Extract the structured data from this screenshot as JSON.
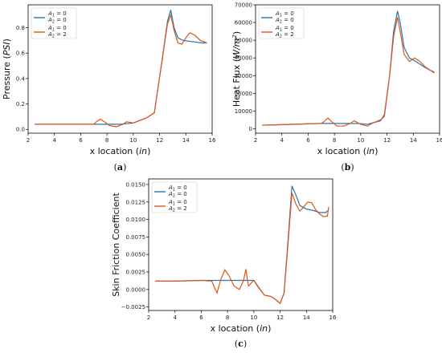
{
  "chart_data": [
    {
      "type": "line",
      "panel_label": "a",
      "xlabel_main": "x location",
      "xlabel_unit": "in",
      "ylabel_main": "Pressure",
      "ylabel_unit": "PSI",
      "ylabel_unit_sup": "",
      "xlim": [
        2,
        16
      ],
      "ylim": [
        -0.03,
        0.98
      ],
      "xticks": [
        2,
        4,
        6,
        8,
        10,
        12,
        14,
        16
      ],
      "yticks": [
        0.0,
        0.2,
        0.4,
        0.6,
        0.8
      ],
      "ytick_labels": [
        "0.0",
        "0.2",
        "0.4",
        "0.6",
        "0.8"
      ],
      "legend_position": "top-left",
      "series": [
        {
          "name_line1": "A1 = 0",
          "name_line2": "A2 = 0",
          "color": "#1f77b4",
          "x": [
            2.5,
            4,
            6,
            7,
            8,
            9,
            10,
            11,
            11.6,
            12.2,
            12.6,
            12.85,
            13.1,
            13.4,
            13.8,
            14.5,
            15.2,
            15.6
          ],
          "y": [
            0.04,
            0.04,
            0.04,
            0.04,
            0.04,
            0.04,
            0.05,
            0.09,
            0.13,
            0.55,
            0.85,
            0.94,
            0.8,
            0.72,
            0.7,
            0.69,
            0.68,
            0.68
          ]
        },
        {
          "name_line1": "A1 = 0",
          "name_line2": "A2 = 2",
          "color": "#e1541b",
          "x": [
            2.5,
            4,
            6,
            7,
            7.2,
            7.5,
            7.8,
            8.2,
            8.7,
            9.2,
            9.5,
            10,
            11,
            11.6,
            12.2,
            12.6,
            12.85,
            13.1,
            13.4,
            13.7,
            14.0,
            14.3,
            14.7,
            15.1,
            15.6
          ],
          "y": [
            0.04,
            0.04,
            0.04,
            0.04,
            0.06,
            0.08,
            0.06,
            0.03,
            0.02,
            0.04,
            0.06,
            0.05,
            0.09,
            0.13,
            0.55,
            0.83,
            0.9,
            0.78,
            0.68,
            0.67,
            0.72,
            0.76,
            0.74,
            0.7,
            0.68
          ]
        }
      ]
    },
    {
      "type": "line",
      "panel_label": "b",
      "xlabel_main": "x location",
      "xlabel_unit": "in",
      "ylabel_main": "Heat Flux",
      "ylabel_unit": "W/m",
      "ylabel_unit_sup": "2",
      "xlim": [
        2,
        16
      ],
      "ylim": [
        -2500,
        70000
      ],
      "xticks": [
        2,
        4,
        6,
        8,
        10,
        12,
        14,
        16
      ],
      "yticks": [
        0,
        10000,
        20000,
        30000,
        40000,
        50000,
        60000,
        70000
      ],
      "ytick_labels": [
        "0",
        "10000",
        "20000",
        "30000",
        "40000",
        "50000",
        "60000",
        "70000"
      ],
      "legend_position": "top-left",
      "series": [
        {
          "name_line1": "A1 = 0",
          "name_line2": "A2 = 0",
          "color": "#1f77b4",
          "x": [
            2.5,
            4,
            6,
            7,
            8,
            9,
            10,
            10.5,
            11,
            11.5,
            11.8,
            12.2,
            12.5,
            12.8,
            13.0,
            13.3,
            13.7,
            14.2,
            14.8,
            15.3,
            15.6
          ],
          "y": [
            2000,
            2300,
            2800,
            3000,
            3000,
            3000,
            2900,
            2500,
            3500,
            4500,
            8000,
            30000,
            55000,
            66500,
            60000,
            46000,
            40000,
            38000,
            35000,
            33000,
            32000
          ]
        },
        {
          "name_line1": "A1 = 0",
          "name_line2": "A2 = 2",
          "color": "#e1541b",
          "x": [
            2.5,
            4,
            6,
            7,
            7.2,
            7.5,
            7.8,
            8.2,
            8.7,
            9.2,
            9.5,
            10,
            10.5,
            11,
            11.5,
            11.8,
            12.2,
            12.5,
            12.8,
            13.0,
            13.3,
            13.7,
            14.1,
            14.5,
            14.9,
            15.3,
            15.6
          ],
          "y": [
            2000,
            2300,
            2800,
            3000,
            4000,
            6000,
            4000,
            1500,
            1500,
            3000,
            4500,
            2500,
            1500,
            3500,
            5000,
            7000,
            30000,
            52000,
            63000,
            55000,
            42000,
            38000,
            40000,
            38000,
            35000,
            33000,
            31500
          ]
        }
      ]
    },
    {
      "type": "line",
      "panel_label": "c",
      "xlabel_main": "x location",
      "xlabel_unit": "in",
      "ylabel_main": "Skin Friction Coefficient",
      "ylabel_unit": "",
      "ylabel_unit_sup": "",
      "xlim": [
        2,
        16
      ],
      "ylim": [
        -0.003,
        0.0158
      ],
      "xticks": [
        2,
        4,
        6,
        8,
        10,
        12,
        14,
        16
      ],
      "yticks": [
        -0.0025,
        0.0,
        0.0025,
        0.005,
        0.0075,
        0.01,
        0.0125,
        0.015
      ],
      "ytick_labels": [
        "−0.0025",
        "0.0000",
        "0.0025",
        "0.0050",
        "0.0075",
        "0.0100",
        "0.0125",
        "0.0150"
      ],
      "legend_position": "top-left",
      "series": [
        {
          "name_line1": "A1 = 0",
          "name_line2": "A2 = 0",
          "color": "#1f77b4",
          "x": [
            2.5,
            4,
            6,
            8,
            9,
            10,
            10.3,
            10.8,
            11.3,
            11.7,
            12.0,
            12.3,
            12.6,
            12.9,
            13.2,
            13.5,
            14.0,
            14.5,
            15.0,
            15.5,
            15.6
          ],
          "y": [
            0.0012,
            0.0012,
            0.0013,
            0.0013,
            0.0013,
            0.0013,
            0.0005,
            -0.0008,
            -0.001,
            -0.0015,
            -0.002,
            -0.0005,
            0.007,
            0.0148,
            0.0135,
            0.012,
            0.0115,
            0.0113,
            0.011,
            0.011,
            0.0113
          ]
        },
        {
          "name_line1": "A1 = 0",
          "name_line2": "A2 = 2",
          "color": "#e1541b",
          "x": [
            2.5,
            4,
            6,
            6.8,
            7.0,
            7.2,
            7.5,
            7.8,
            8.1,
            8.5,
            8.9,
            9.2,
            9.4,
            9.5,
            9.6,
            10,
            10.3,
            10.8,
            11.3,
            11.7,
            12.0,
            12.3,
            12.6,
            12.9,
            13.2,
            13.5,
            13.8,
            14.1,
            14.4,
            14.7,
            15.0,
            15.3,
            15.6,
            15.7
          ],
          "y": [
            0.0012,
            0.0012,
            0.0013,
            0.0012,
            0.0003,
            -0.0005,
            0.0015,
            0.0028,
            0.002,
            0.0005,
            0.0,
            0.0012,
            0.0029,
            0.0015,
            0.0005,
            0.0013,
            0.0004,
            -0.0008,
            -0.001,
            -0.0015,
            -0.002,
            -0.0005,
            0.0065,
            0.0138,
            0.0122,
            0.0112,
            0.0118,
            0.0125,
            0.0124,
            0.0114,
            0.0108,
            0.0104,
            0.0105,
            0.0118
          ]
        }
      ]
    }
  ]
}
